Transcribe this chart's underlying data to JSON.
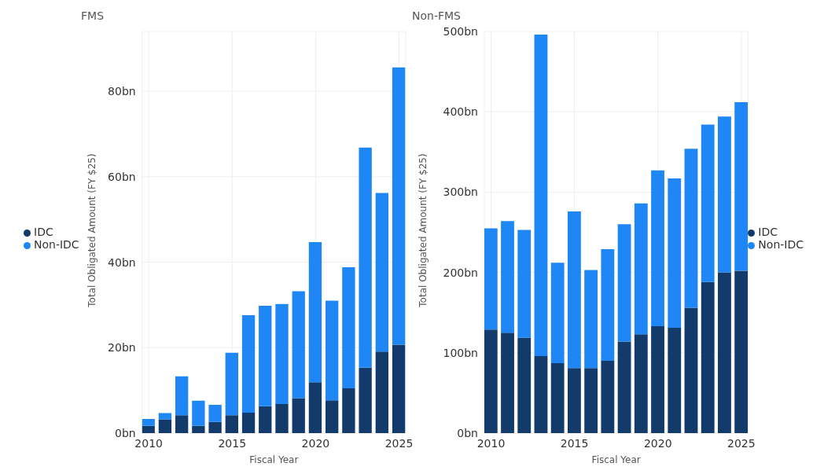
{
  "chart_data": [
    {
      "type": "bar",
      "title": "FMS",
      "xlabel": "Fiscal Year",
      "ylabel": "Total Obligated Amount (FY $25)",
      "stacked": true,
      "legend": "left",
      "grid": true,
      "x": [
        2010,
        2011,
        2012,
        2013,
        2014,
        2015,
        2016,
        2017,
        2018,
        2019,
        2020,
        2021,
        2022,
        2023,
        2024,
        2025
      ],
      "xlim": [
        2009.6,
        2025.4
      ],
      "xticks": [
        2010,
        2015,
        2020,
        2025
      ],
      "ylim": [
        0,
        94
      ],
      "yticks": [
        {
          "value": 0,
          "label": "0bn"
        },
        {
          "value": 20,
          "label": "20bn"
        },
        {
          "value": 40,
          "label": "40bn"
        },
        {
          "value": 60,
          "label": "60bn"
        },
        {
          "value": 80,
          "label": "80bn"
        }
      ],
      "series": [
        {
          "name": "IDC",
          "color": "#123b6b",
          "values": [
            1.7,
            3.2,
            4.2,
            1.7,
            2.6,
            4.2,
            4.8,
            6.3,
            6.8,
            8.2,
            11.9,
            7.7,
            10.5,
            15.3,
            19.1,
            20.7
          ]
        },
        {
          "name": "Non-IDC",
          "color": "#1f87f5",
          "values": [
            1.6,
            1.5,
            9.1,
            5.9,
            4.0,
            14.6,
            22.8,
            23.5,
            23.4,
            25.0,
            32.8,
            23.3,
            28.3,
            51.5,
            37.1,
            64.9
          ]
        }
      ]
    },
    {
      "type": "bar",
      "title": "Non-FMS",
      "xlabel": "Fiscal Year",
      "ylabel": "Total Obligated Amount (FY $25)",
      "stacked": true,
      "legend": "right",
      "grid": true,
      "x": [
        2010,
        2011,
        2012,
        2013,
        2014,
        2015,
        2016,
        2017,
        2018,
        2019,
        2020,
        2021,
        2022,
        2023,
        2024,
        2025
      ],
      "xlim": [
        2009.6,
        2025.4
      ],
      "xticks": [
        2010,
        2015,
        2020,
        2025
      ],
      "ylim": [
        0,
        500
      ],
      "yticks": [
        {
          "value": 0,
          "label": "0bn"
        },
        {
          "value": 100,
          "label": "100bn"
        },
        {
          "value": 200,
          "label": "200bn"
        },
        {
          "value": 300,
          "label": "300bn"
        },
        {
          "value": 400,
          "label": "400bn"
        },
        {
          "value": 500,
          "label": "500bn"
        }
      ],
      "series": [
        {
          "name": "IDC",
          "color": "#123b6b",
          "values": [
            129,
            125,
            119,
            96,
            87,
            81,
            81,
            90,
            114,
            123,
            133,
            131,
            156,
            188,
            200,
            202
          ]
        },
        {
          "name": "Non-IDC",
          "color": "#1f87f5",
          "values": [
            126,
            139,
            134,
            400,
            125,
            195,
            122,
            139,
            146,
            163,
            194,
            186,
            198,
            196,
            194,
            210
          ]
        }
      ]
    }
  ]
}
